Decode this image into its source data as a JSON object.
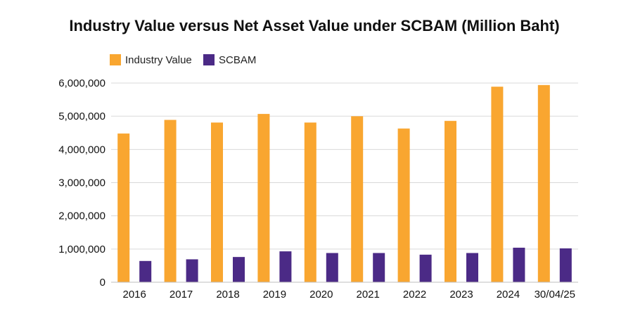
{
  "chart_data": {
    "type": "bar",
    "title": "Industry Value versus Net Asset Value under SCBAM (Million Baht)",
    "xlabel": "",
    "ylabel": "",
    "categories": [
      "2016",
      "2017",
      "2018",
      "2019",
      "2020",
      "2021",
      "2022",
      "2023",
      "2024",
      "30/04/25"
    ],
    "series": [
      {
        "name": "Industry Value",
        "color": "#F9A630",
        "values": [
          4480000,
          4890000,
          4810000,
          5070000,
          4810000,
          5000000,
          4630000,
          4860000,
          5890000,
          5940000
        ]
      },
      {
        "name": "SCBAM",
        "color": "#4B2A86",
        "values": [
          640000,
          690000,
          760000,
          930000,
          880000,
          880000,
          830000,
          880000,
          1040000,
          1020000
        ]
      }
    ],
    "ylim": [
      0,
      6000000
    ],
    "yticks": [
      0,
      1000000,
      2000000,
      3000000,
      4000000,
      5000000,
      6000000
    ],
    "ytick_labels": [
      "0",
      "1,000,000",
      "2,000,000",
      "3,000,000",
      "4,000,000",
      "5,000,000",
      "6,000,000"
    ],
    "grid": true,
    "legend_position": "top-left"
  }
}
